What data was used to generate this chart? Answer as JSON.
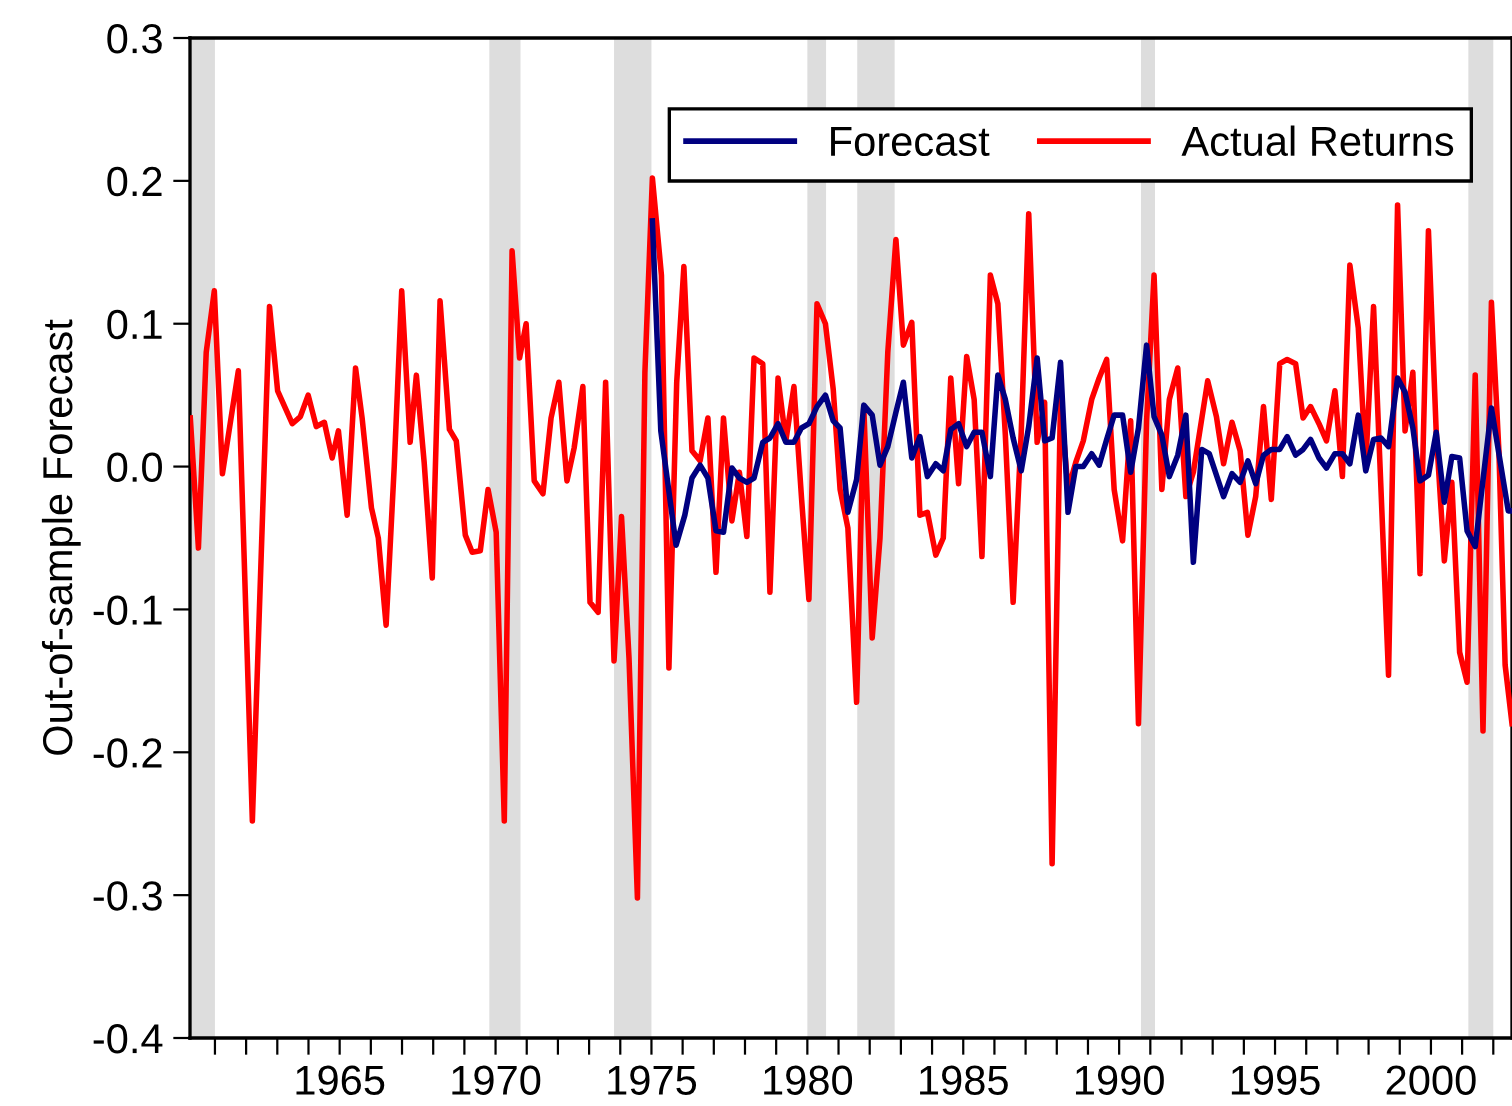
{
  "chart_data": {
    "type": "line",
    "ylabel": "Out-of-sample Forecast",
    "xlim": [
      1960.2,
      2002.6
    ],
    "ylim": [
      -0.4,
      0.3
    ],
    "yticks": [
      {
        "value": -0.4,
        "label": "-0.4"
      },
      {
        "value": -0.3,
        "label": "-0.3"
      },
      {
        "value": -0.2,
        "label": "-0.2"
      },
      {
        "value": -0.1,
        "label": "-0.1"
      },
      {
        "value": 0,
        "label": "0.0"
      },
      0.1,
      0.2,
      0.3
    ],
    "xticks": [
      {
        "value": 1961,
        "label": null
      },
      {
        "value": 1962,
        "label": null
      },
      {
        "value": 1963,
        "label": null
      },
      {
        "value": 1964,
        "label": null
      },
      1965,
      {
        "value": 1966,
        "label": null
      },
      {
        "value": 1967,
        "label": null
      },
      {
        "value": 1968,
        "label": null
      },
      {
        "value": 1969,
        "label": null
      },
      1970,
      {
        "value": 1971,
        "label": null
      },
      {
        "value": 1972,
        "label": null
      },
      {
        "value": 1973,
        "label": null
      },
      {
        "value": 1974,
        "label": null
      },
      1975,
      {
        "value": 1976,
        "label": null
      },
      {
        "value": 1977,
        "label": null
      },
      {
        "value": 1978,
        "label": null
      },
      {
        "value": 1979,
        "label": null
      },
      1980,
      {
        "value": 1981,
        "label": null
      },
      {
        "value": 1982,
        "label": null
      },
      {
        "value": 1983,
        "label": null
      },
      {
        "value": 1984,
        "label": null
      },
      1985,
      {
        "value": 1986,
        "label": null
      },
      {
        "value": 1987,
        "label": null
      },
      {
        "value": 1988,
        "label": null
      },
      {
        "value": 1989,
        "label": null
      },
      1990,
      {
        "value": 1991,
        "label": null
      },
      {
        "value": 1992,
        "label": null
      },
      {
        "value": 1993,
        "label": null
      },
      {
        "value": 1994,
        "label": null
      },
      1995,
      {
        "value": 1996,
        "label": null
      },
      {
        "value": 1997,
        "label": null
      },
      {
        "value": 1998,
        "label": null
      },
      {
        "value": 1999,
        "label": null
      },
      2000,
      {
        "value": 2001,
        "label": null
      },
      {
        "value": 2002,
        "label": null
      }
    ],
    "grid": false,
    "legend": "top right",
    "line_style": "solid",
    "marker": "none",
    "bands": [
      {
        "axis": "x",
        "from": 1960.2,
        "to": 1961.0,
        "color": "#dddddd"
      },
      {
        "axis": "x",
        "from": 1969.8,
        "to": 1970.8,
        "color": "#dddddd"
      },
      {
        "axis": "x",
        "from": 1973.8,
        "to": 1975.0,
        "color": "#dddddd"
      },
      {
        "axis": "x",
        "from": 1980.0,
        "to": 1980.6,
        "color": "#dddddd"
      },
      {
        "axis": "x",
        "from": 1981.6,
        "to": 1982.8,
        "color": "#dddddd"
      },
      {
        "axis": "x",
        "from": 1990.7,
        "to": 1991.15,
        "color": "#dddddd"
      },
      {
        "axis": "x",
        "from": 2001.2,
        "to": 2002.0,
        "color": "#dddddd"
      }
    ],
    "series": [
      {
        "name": "Forecast",
        "color": "#000080",
        "x": [
          1975.03,
          1975.3,
          1975.79,
          1976.07,
          1976.3,
          1976.56,
          1976.81,
          1977.07,
          1977.31,
          1977.58,
          1977.82,
          1978.06,
          1978.29,
          1978.57,
          1978.8,
          1979.06,
          1979.31,
          1979.57,
          1979.81,
          1980.05,
          1980.31,
          1980.58,
          1980.83,
          1981.05,
          1981.3,
          1981.58,
          1981.81,
          1982.08,
          1982.33,
          1982.58,
          1982.84,
          1983.08,
          1983.35,
          1983.61,
          1983.85,
          1984.12,
          1984.36,
          1984.6,
          1984.85,
          1985.11,
          1985.35,
          1985.6,
          1985.87,
          1986.11,
          1986.35,
          1986.6,
          1986.86,
          1987.1,
          1987.37,
          1987.61,
          1987.85,
          1988.12,
          1988.36,
          1988.61,
          1988.85,
          1989.12,
          1989.36,
          1989.6,
          1989.84,
          1990.11,
          1990.37,
          1990.62,
          1990.88,
          1991.12,
          1991.37,
          1991.61,
          1991.88,
          1992.14,
          1992.38,
          1992.65,
          1992.89,
          1993.35,
          1993.62,
          1993.88,
          1994.13,
          1994.38,
          1994.63,
          1994.88,
          1995.15,
          1995.39,
          1995.66,
          1995.9,
          1996.14,
          1996.41,
          1996.65,
          1996.92,
          1997.16,
          1997.4,
          1997.67,
          1997.91,
          1998.16,
          1998.4,
          1998.64,
          1998.93,
          1999.17,
          1999.42,
          1999.65,
          1999.92,
          2000.17,
          2000.43,
          2000.67,
          2000.92,
          2001.16,
          2001.42,
          2001.94,
          2002.48,
          2002.6
        ],
        "values": [
          0.172,
          0.025,
          -0.055,
          -0.034,
          -0.008,
          0.001,
          -0.008,
          -0.045,
          -0.046,
          -0.001,
          -0.008,
          -0.011,
          -0.008,
          0.017,
          0.02,
          0.03,
          0.017,
          0.017,
          0.027,
          0.03,
          0.042,
          0.05,
          0.032,
          0.027,
          -0.032,
          -0.009,
          0.043,
          0.036,
          0.001,
          0.014,
          0.038,
          0.059,
          0.006,
          0.021,
          -0.007,
          0.002,
          -0.003,
          0.026,
          0.03,
          0.014,
          0.024,
          0.024,
          -0.007,
          0.064,
          0.047,
          0.02,
          -0.003,
          0.028,
          0.076,
          0.018,
          0.02,
          0.073,
          -0.032,
          0.0,
          0.0,
          0.009,
          0.001,
          0.019,
          0.036,
          0.036,
          -0.004,
          0.027,
          0.085,
          0.035,
          0.022,
          -0.007,
          0.008,
          0.036,
          -0.067,
          0.012,
          0.009,
          -0.021,
          -0.005,
          -0.011,
          0.004,
          -0.012,
          0.008,
          0.012,
          0.012,
          0.021,
          0.008,
          0.012,
          0.019,
          0.006,
          -0.001,
          0.009,
          0.009,
          0.002,
          0.036,
          -0.003,
          0.019,
          0.02,
          0.014,
          0.062,
          0.052,
          0.027,
          -0.01,
          -0.006,
          0.024,
          -0.025,
          0.007,
          0.006,
          -0.045,
          -0.056,
          0.041,
          -0.031,
          -0.031
        ]
      },
      {
        "name": "Actual Returns",
        "color": "#ff0000",
        "x": [
          1960.21,
          1960.47,
          1960.72,
          1960.98,
          1961.24,
          1961.75,
          1962.2,
          1962.75,
          1963.01,
          1963.48,
          1963.74,
          1963.99,
          1964.25,
          1964.51,
          1964.76,
          1964.96,
          1965.24,
          1965.51,
          1965.72,
          1966.02,
          1966.24,
          1966.49,
          1966.75,
          1966.99,
          1967.26,
          1967.46,
          1967.71,
          1967.97,
          1968.22,
          1968.52,
          1968.74,
          1969.03,
          1969.25,
          1969.51,
          1969.76,
          1970.02,
          1970.28,
          1970.53,
          1970.77,
          1970.98,
          1971.24,
          1971.52,
          1971.78,
          1972.03,
          1972.29,
          1972.52,
          1972.8,
          1973.03,
          1973.29,
          1973.53,
          1973.8,
          1974.04,
          1974.28,
          1974.55,
          1974.79,
          1975.03,
          1975.32,
          1975.56,
          1975.81,
          1976.04,
          1976.3,
          1976.56,
          1976.81,
          1977.07,
          1977.31,
          1977.58,
          1977.82,
          1978.06,
          1978.29,
          1978.57,
          1978.8,
          1979.06,
          1979.31,
          1979.57,
          1979.81,
          1980.05,
          1980.31,
          1980.58,
          1980.83,
          1981.05,
          1981.3,
          1981.58,
          1981.81,
          1982.08,
          1982.33,
          1982.58,
          1982.84,
          1983.08,
          1983.35,
          1983.61,
          1983.85,
          1984.12,
          1984.36,
          1984.6,
          1984.85,
          1985.11,
          1985.35,
          1985.6,
          1985.87,
          1986.11,
          1986.35,
          1986.6,
          1986.86,
          1987.1,
          1987.37,
          1987.61,
          1987.85,
          1988.12,
          1988.36,
          1988.61,
          1988.85,
          1989.12,
          1989.36,
          1989.6,
          1989.84,
          1990.11,
          1990.37,
          1990.62,
          1990.88,
          1991.12,
          1991.37,
          1991.61,
          1991.88,
          1992.14,
          1992.38,
          1992.84,
          1993.12,
          1993.35,
          1993.62,
          1993.88,
          1994.13,
          1994.38,
          1994.63,
          1994.88,
          1995.15,
          1995.39,
          1995.66,
          1995.9,
          1996.14,
          1996.41,
          1996.65,
          1996.92,
          1997.16,
          1997.4,
          1997.67,
          1997.91,
          1998.16,
          1998.64,
          1998.93,
          1999.17,
          1999.42,
          1999.65,
          1999.92,
          2000.17,
          2000.43,
          2000.67,
          2000.92,
          2001.16,
          2001.42,
          2001.67,
          2001.94,
          2002.18,
          2002.38,
          2002.6
        ],
        "values": [
          0.034,
          -0.057,
          0.08,
          0.123,
          -0.005,
          0.067,
          -0.248,
          0.112,
          0.053,
          0.03,
          0.035,
          0.05,
          0.028,
          0.031,
          0.006,
          0.025,
          -0.034,
          0.069,
          0.034,
          -0.029,
          -0.05,
          -0.111,
          0.0,
          0.123,
          0.017,
          0.064,
          0.003,
          -0.078,
          0.116,
          0.026,
          0.018,
          -0.048,
          -0.06,
          -0.059,
          -0.016,
          -0.046,
          -0.248,
          0.151,
          0.076,
          0.1,
          -0.01,
          -0.019,
          0.034,
          0.059,
          -0.01,
          0.013,
          0.056,
          -0.095,
          -0.102,
          0.059,
          -0.136,
          -0.035,
          -0.134,
          -0.302,
          0.066,
          0.202,
          0.134,
          -0.141,
          0.059,
          0.14,
          0.011,
          0.004,
          0.034,
          -0.074,
          0.034,
          -0.038,
          -0.004,
          -0.049,
          0.076,
          0.072,
          -0.088,
          0.062,
          0.018,
          0.056,
          -0.021,
          -0.093,
          0.114,
          0.1,
          0.054,
          -0.016,
          -0.043,
          -0.165,
          0.042,
          -0.12,
          -0.05,
          0.08,
          0.159,
          0.085,
          0.101,
          -0.034,
          -0.032,
          -0.062,
          -0.05,
          0.062,
          -0.012,
          0.077,
          0.047,
          -0.063,
          0.134,
          0.114,
          0.022,
          -0.095,
          0.024,
          0.177,
          0.017,
          0.045,
          -0.278,
          0.047,
          -0.016,
          0.003,
          0.018,
          0.047,
          0.062,
          0.075,
          -0.016,
          -0.052,
          0.032,
          -0.18,
          0.032,
          0.134,
          -0.016,
          0.047,
          0.069,
          -0.021,
          -0.004,
          0.06,
          0.035,
          0.002,
          0.031,
          0.011,
          -0.048,
          -0.021,
          0.042,
          -0.023,
          0.072,
          0.075,
          0.072,
          0.034,
          0.042,
          0.03,
          0.018,
          0.053,
          -0.007,
          0.141,
          0.097,
          0.002,
          0.112,
          -0.146,
          0.183,
          0.025,
          0.066,
          -0.075,
          0.165,
          0.024,
          -0.066,
          -0.011,
          -0.13,
          -0.151,
          0.064,
          -0.185,
          0.115,
          0.011,
          -0.139,
          -0.18
        ]
      }
    ]
  }
}
